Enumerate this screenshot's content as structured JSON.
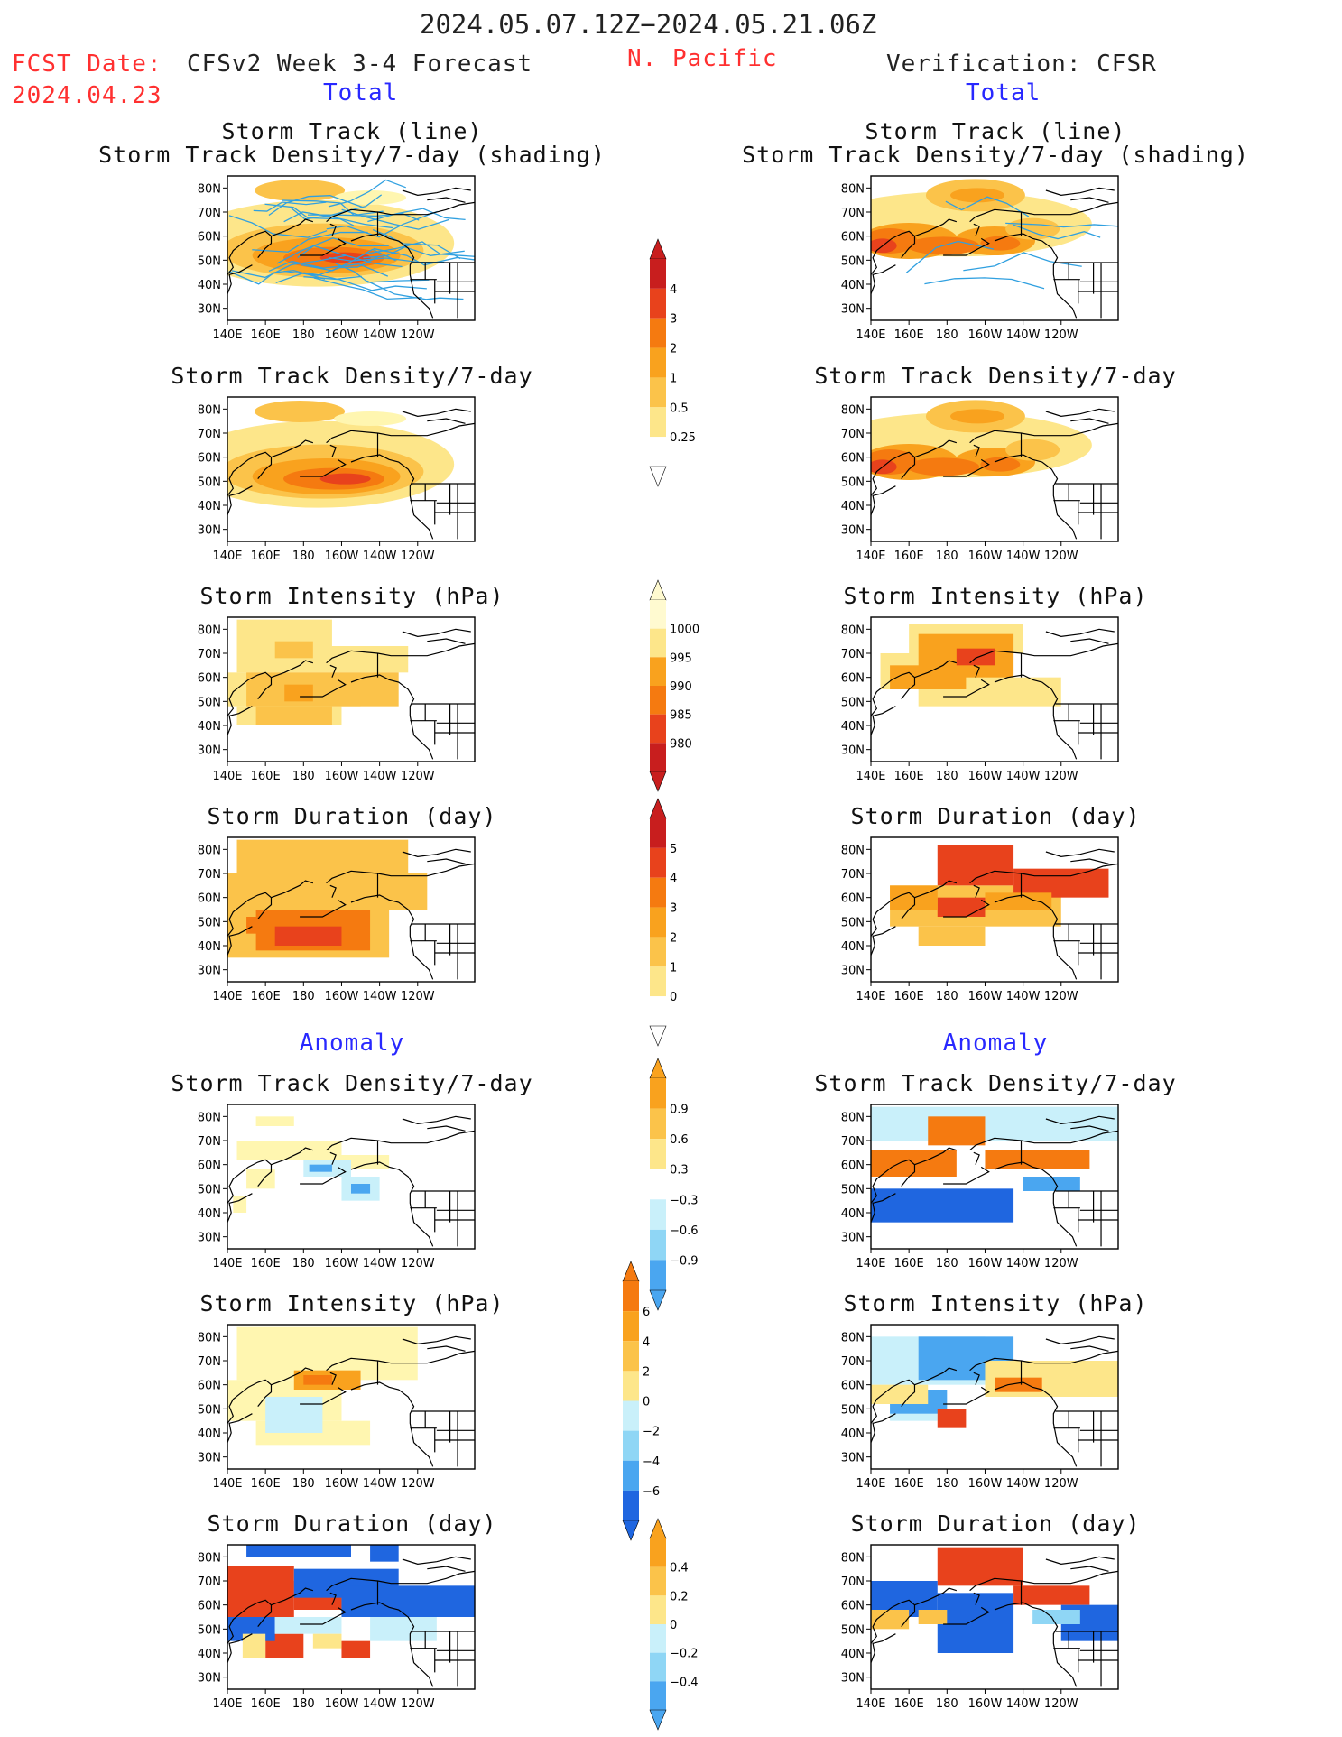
{
  "header": {
    "period": "2024.05.07.12Z−2024.05.21.06Z",
    "fcst_label": "FCST Date:",
    "fcst_date": "2024.04.23",
    "region": "N. Pacific",
    "left_title": "CFSv2 Week 3-4 Forecast",
    "right_title": "Verification: CFSR",
    "left_section": "Total",
    "right_section": "Total",
    "anomaly_left": "Anomaly",
    "anomaly_right": "Anomaly"
  },
  "panel_titles": {
    "track_line": "Storm Track (line)",
    "track_shading": "Storm Track Density/7-day (shading)",
    "density": "Storm Track Density/7-day",
    "intensity": "Storm Intensity (hPa)",
    "duration": "Storm Duration (day)"
  },
  "axes": {
    "lon_ticks": [
      "140E",
      "160E",
      "180",
      "160W",
      "140W",
      "120W"
    ],
    "lat_ticks": [
      "80N",
      "70N",
      "60N",
      "50N",
      "40N",
      "30N"
    ]
  },
  "colorbars": {
    "density_total": [
      "4",
      "3",
      "2",
      "1",
      "0.5",
      "0.25"
    ],
    "intensity_total": [
      "1000",
      "995",
      "990",
      "985",
      "980"
    ],
    "duration_total": [
      "5",
      "4",
      "3",
      "2",
      "1",
      "0"
    ],
    "density_anom": [
      "0.9",
      "0.6",
      "0.3",
      "−0.3",
      "−0.6",
      "−0.9"
    ],
    "intensity_anom": [
      "6",
      "4",
      "2",
      "0",
      "−2",
      "−4",
      "−6"
    ],
    "duration_anom": [
      "0.4",
      "0.2",
      "0",
      "−0.2",
      "−0.4"
    ]
  },
  "palette": {
    "warm": [
      "#fff6b0",
      "#fde68a",
      "#fbc34a",
      "#f9a21e",
      "#f57a10",
      "#e8421c",
      "#c81e1e"
    ],
    "cool": [
      "#c9f0fa",
      "#8fd6f5",
      "#4aa6f0",
      "#1f66e0",
      "#1446c0"
    ],
    "track_line": "#30a0e0"
  }
}
